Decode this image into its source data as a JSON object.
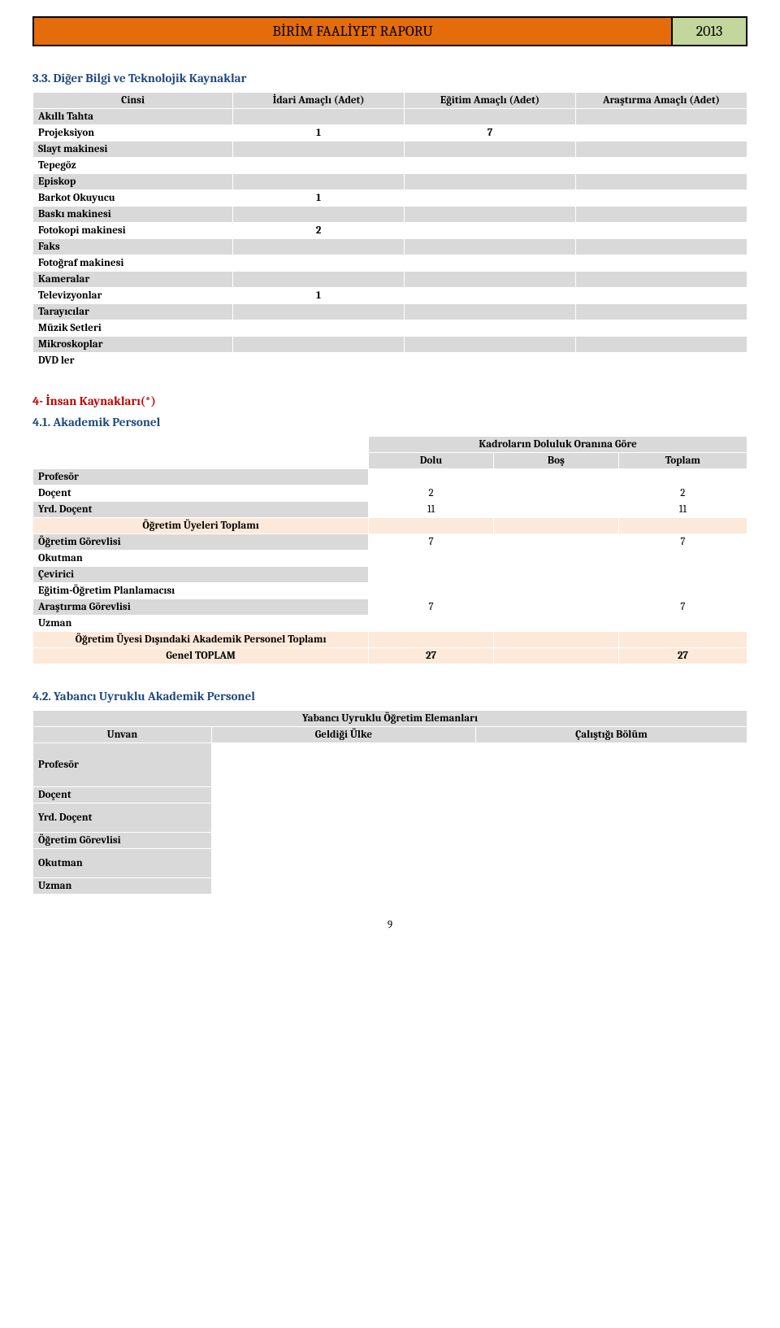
{
  "header": {
    "title": "BİRİM FAALİYET RAPORU",
    "year": "2013"
  },
  "section1": {
    "title": "3.3. Diğer Bilgi ve Teknolojik Kaynaklar",
    "columns": {
      "cinsi": "Cinsi",
      "idari": "İdari Amaçlı (Adet)",
      "egitim": "Eğitim Amaçlı (Adet)",
      "arastirma": "Araştırma Amaçlı (Adet)"
    },
    "rows": [
      {
        "label": "Akıllı Tahta",
        "idari": "",
        "egitim": "",
        "arastirma": "",
        "shade": "gray"
      },
      {
        "label": "Projeksiyon",
        "idari": "1",
        "egitim": "7",
        "arastirma": "",
        "shade": "white"
      },
      {
        "label": "Slayt makinesi",
        "idari": "",
        "egitim": "",
        "arastirma": "",
        "shade": "gray"
      },
      {
        "label": "Tepegöz",
        "idari": "",
        "egitim": "",
        "arastirma": "",
        "shade": "white"
      },
      {
        "label": "Episkop",
        "idari": "",
        "egitim": "",
        "arastirma": "",
        "shade": "gray"
      },
      {
        "label": "Barkot Okuyucu",
        "idari": "1",
        "egitim": "",
        "arastirma": "",
        "shade": "white"
      },
      {
        "label": "Baskı makinesi",
        "idari": "",
        "egitim": "",
        "arastirma": "",
        "shade": "gray"
      },
      {
        "label": "Fotokopi makinesi",
        "idari": "2",
        "egitim": "",
        "arastirma": "",
        "shade": "white"
      },
      {
        "label": "Faks",
        "idari": "",
        "egitim": "",
        "arastirma": "",
        "shade": "gray"
      },
      {
        "label": "Fotoğraf makinesi",
        "idari": "",
        "egitim": "",
        "arastirma": "",
        "shade": "white"
      },
      {
        "label": "Kameralar",
        "idari": "",
        "egitim": "",
        "arastirma": "",
        "shade": "gray"
      },
      {
        "label": "Televizyonlar",
        "idari": "1",
        "egitim": "",
        "arastirma": "",
        "shade": "white"
      },
      {
        "label": "Tarayıcılar",
        "idari": "",
        "egitim": "",
        "arastirma": "",
        "shade": "gray"
      },
      {
        "label": "Müzik Setleri",
        "idari": "",
        "egitim": "",
        "arastirma": "",
        "shade": "white"
      },
      {
        "label": "Mikroskoplar",
        "idari": "",
        "egitim": "",
        "arastirma": "",
        "shade": "gray"
      },
      {
        "label": "DVD ler",
        "idari": "",
        "egitim": "",
        "arastirma": "",
        "shade": "white"
      }
    ]
  },
  "section2": {
    "title_parent": "4- İnsan Kaynakları(*)",
    "title": "4.1. Akademik Personel",
    "header_top": "Kadroların Doluluk Oranına Göre",
    "columns": {
      "dolu": "Dolu",
      "bos": "Boş",
      "toplam": "Toplam"
    },
    "rows": [
      {
        "kind": "gray",
        "label": "Profesör",
        "dolu": "",
        "bos": "",
        "toplam": ""
      },
      {
        "kind": "white",
        "label": "Doçent",
        "dolu": "2",
        "bos": "",
        "toplam": "2"
      },
      {
        "kind": "gray",
        "label": "Yrd. Doçent",
        "dolu": "11",
        "bos": "",
        "toplam": "11"
      },
      {
        "kind": "peach",
        "label": "Öğretim Üyeleri Toplamı",
        "dolu": "",
        "bos": "",
        "toplam": ""
      },
      {
        "kind": "gray",
        "label": "Öğretim Görevlisi",
        "dolu": "7",
        "bos": "",
        "toplam": "7"
      },
      {
        "kind": "white",
        "label": "Okutman",
        "dolu": "",
        "bos": "",
        "toplam": ""
      },
      {
        "kind": "gray",
        "label": "Çevirici",
        "dolu": "",
        "bos": "",
        "toplam": ""
      },
      {
        "kind": "white",
        "label": "Eğitim-Öğretim Planlamacısı",
        "dolu": "",
        "bos": "",
        "toplam": ""
      },
      {
        "kind": "gray",
        "label": "Araştırma Görevlisi",
        "dolu": "7",
        "bos": "",
        "toplam": "7"
      },
      {
        "kind": "white",
        "label": "Uzman",
        "dolu": "",
        "bos": "",
        "toplam": ""
      },
      {
        "kind": "peach",
        "label": "Öğretim Üyesi Dışındaki Akademik Personel Toplamı",
        "dolu": "",
        "bos": "",
        "toplam": ""
      },
      {
        "kind": "genel",
        "label": "Genel TOPLAM",
        "dolu": "27",
        "bos": "",
        "toplam": "27"
      }
    ]
  },
  "section3": {
    "title": "4.2. Yabancı Uyruklu Akademik Personel",
    "header_top": "Yabancı Uyruklu Öğretim Elemanları",
    "columns": {
      "unvan": "Unvan",
      "geldigi": "Geldiği Ülke",
      "calistigi": "Çalıştığı Bölüm"
    },
    "rows": [
      {
        "label": "Profesör",
        "span": 3
      },
      {
        "label": "Doçent",
        "span": 1
      },
      {
        "label": "Yrd. Doçent",
        "span": 2
      },
      {
        "label": "Öğretim Görevlisi",
        "span": 1
      },
      {
        "label": "Okutman",
        "span": 2
      },
      {
        "label": "Uzman",
        "span": 1
      }
    ]
  },
  "page_number": "9"
}
